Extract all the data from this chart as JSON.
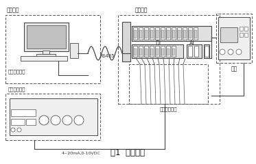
{
  "title": "图1  系统组成",
  "bg_color": "#ffffff",
  "label_zhuji": "测试主机",
  "label_moni": "模拟量仿真器",
  "label_beice": "被测设备",
  "label_dianyuan": "电源",
  "label_shuzi": "数字量仿真器",
  "label_rs485": "RS485",
  "label_signal": "4~20mA,0-10VDC",
  "label_DI": "DI",
  "label_AI": "AI"
}
